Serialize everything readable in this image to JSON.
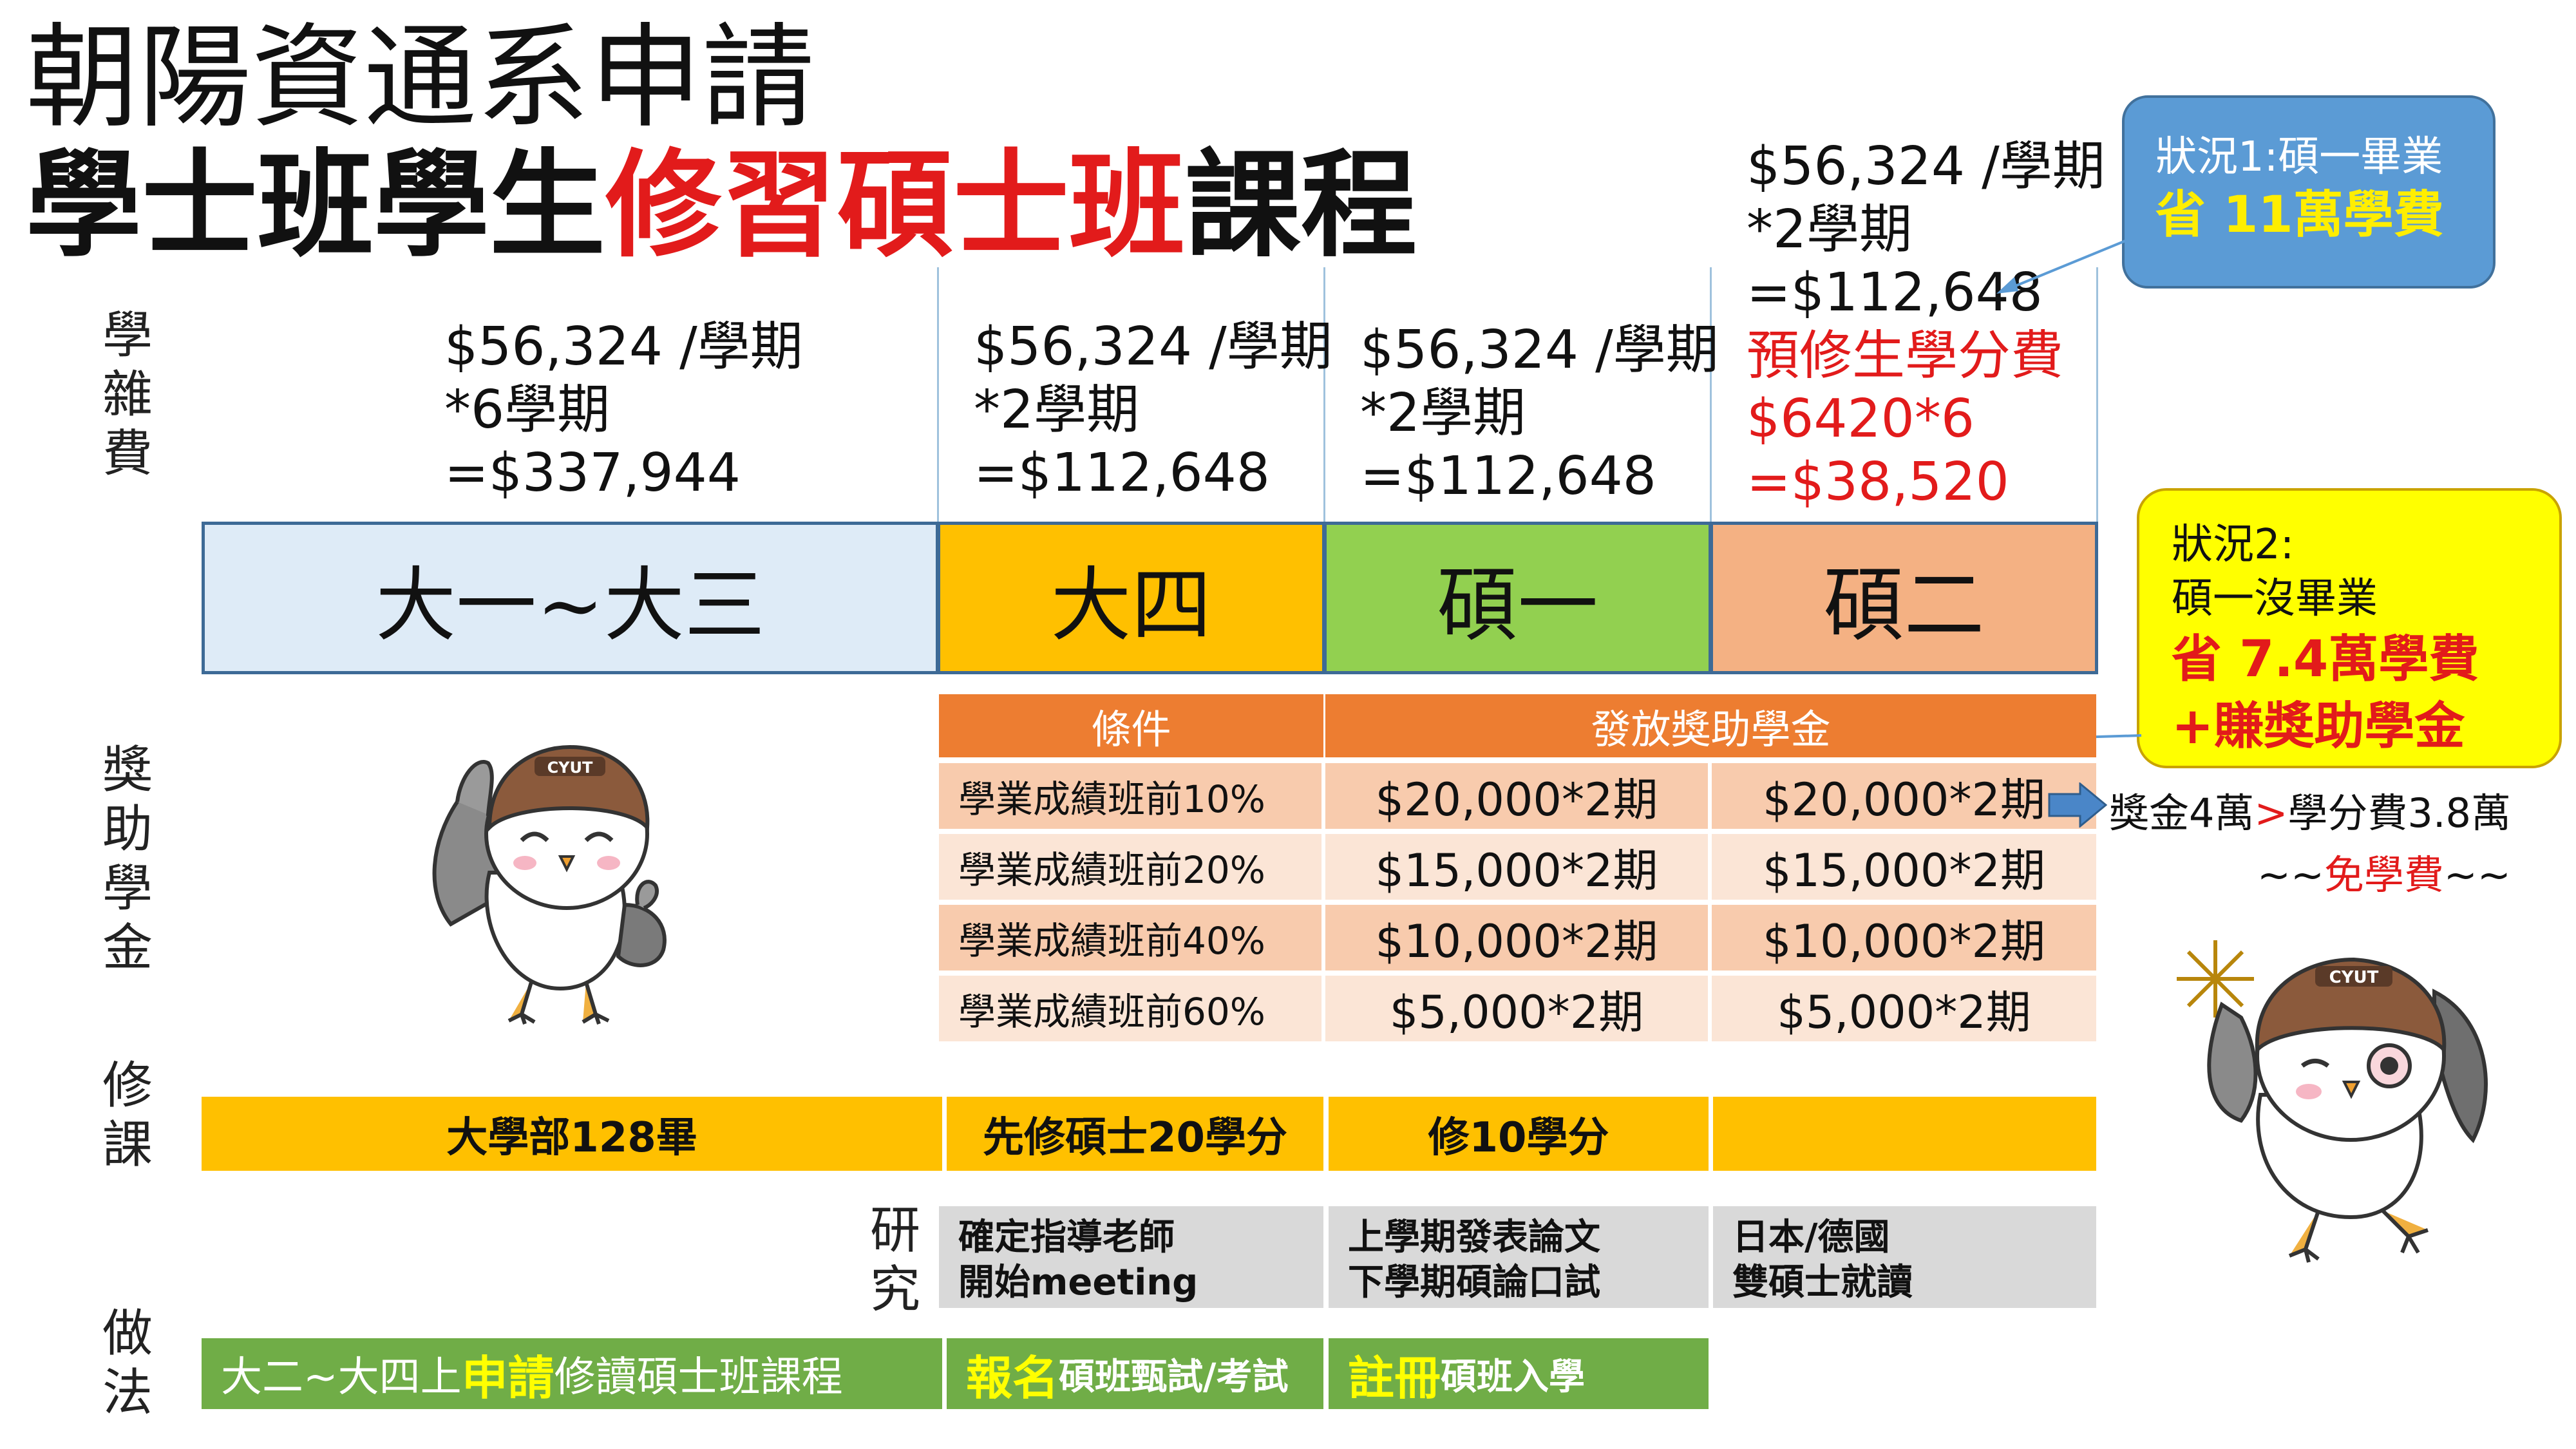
{
  "title": {
    "line1": "朝陽資通系申請",
    "line2_black": "學士班學生",
    "line2_red": "修習碩士班",
    "line2_black2": "課程"
  },
  "row_labels": {
    "fees": [
      "學",
      "雜",
      "費"
    ],
    "scholarship": [
      "獎",
      "助",
      "學",
      "金"
    ],
    "courses": [
      "修",
      "課"
    ],
    "research": [
      "研",
      "究"
    ],
    "method": [
      "做",
      "法"
    ]
  },
  "fees": {
    "col1": [
      "$56,324 /學期",
      "*6學期",
      "=$337,944"
    ],
    "col2": [
      "$56,324 /學期",
      "*2學期",
      "=$112,648"
    ],
    "col3": [
      "$56,324 /學期",
      "*2學期",
      "=$112,648"
    ],
    "col4_black": [
      "$56,324 /學期",
      "*2學期",
      "=$112,648"
    ],
    "col4_red": [
      "預修生學分費",
      "$6420*6",
      "=$38,520"
    ]
  },
  "stages": [
    {
      "label": "大一~大三",
      "color": "#deebf7"
    },
    {
      "label": "大四",
      "color": "#ffc000"
    },
    {
      "label": "碩一",
      "color": "#92d050"
    },
    {
      "label": "碩二",
      "color": "#f4b183"
    }
  ],
  "callout1": {
    "line1": "狀況1:碩一畢業",
    "line2": "省 11萬學費"
  },
  "callout2": {
    "line1": "狀況2:",
    "line2": "碩一沒畢業",
    "line3": "省 7.4萬學費",
    "line4": "+賺獎助學金"
  },
  "scholarship_table": {
    "headers": [
      "條件",
      "發放獎助學金"
    ],
    "rows": [
      {
        "condition": "學業成績班前10%",
        "y1": "$20,000*2期",
        "y2": "$20,000*2期"
      },
      {
        "condition": "學業成績班前20%",
        "y1": "$15,000*2期",
        "y2": "$15,000*2期"
      },
      {
        "condition": "學業成績班前40%",
        "y1": "$10,000*2期",
        "y2": "$10,000*2期"
      },
      {
        "condition": "學業成績班前60%",
        "y1": "$5,000*2期",
        "y2": "$5,000*2期"
      }
    ]
  },
  "arrow_note": {
    "part1": "獎金4萬",
    "gt": ">",
    "part2": "學分費3.8萬",
    "line2_a": "~~",
    "line2_red": "免學費",
    "line2_b": "~~"
  },
  "courses": [
    "大學部128畢",
    "先修碩士20學分",
    "修10學分",
    ""
  ],
  "research": [
    [
      "確定指導老師",
      "開始meeting"
    ],
    [
      "上學期發表論文",
      "下學期碩論口試"
    ],
    [
      "日本/德國",
      "雙碩士就讀"
    ]
  ],
  "method": [
    {
      "highlight": "申請",
      "pre": "大二~大四上",
      "post": "修讀碩士班課程"
    },
    {
      "highlight": "報名",
      "post": "碩班甄試/考試"
    },
    {
      "highlight": "註冊",
      "post": "碩班入學"
    }
  ],
  "mascot_badge": "CYUT",
  "colors": {
    "title_red": "#e21b1b",
    "orange": "#ed7d31",
    "gold": "#ffc000",
    "green": "#70ad47",
    "blue_callout": "#5b9bd5",
    "yellow_callout": "#ffff00"
  }
}
